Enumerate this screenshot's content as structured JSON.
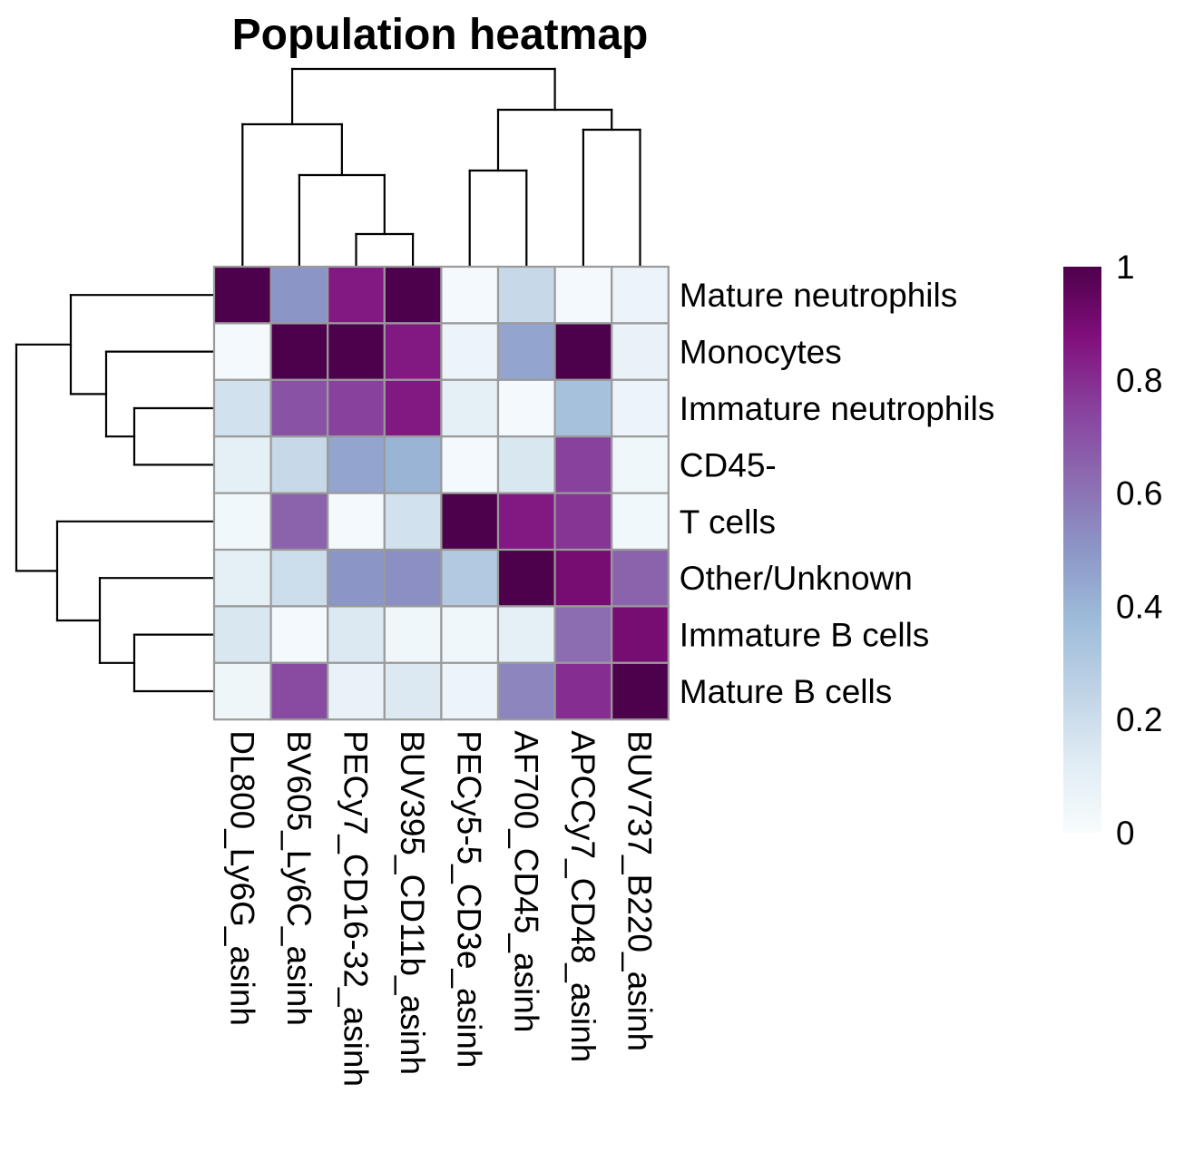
{
  "chart_data": {
    "type": "heatmap",
    "title": "Population heatmap",
    "columns": [
      "DL800_Ly6G_asinh",
      "BV605_Ly6C_asinh",
      "PECy7_CD16-32_asinh",
      "BUV395_CD11b_asinh",
      "PECy5-5_CD3e_asinh",
      "AF700_CD45_asinh",
      "APCCy7_CD48_asinh",
      "BUV737_B220_asinh"
    ],
    "rows": [
      "Mature neutrophils",
      "Monocytes",
      "Immature neutrophils",
      "CD45-",
      "T cells",
      "Other/Unknown",
      "Immature B cells",
      "Mature B cells"
    ],
    "values": [
      [
        1.0,
        0.5,
        0.85,
        1.0,
        0.02,
        0.22,
        0.02,
        0.06
      ],
      [
        0.02,
        1.0,
        1.0,
        0.85,
        0.06,
        0.45,
        1.0,
        0.08
      ],
      [
        0.18,
        0.7,
        0.75,
        0.85,
        0.1,
        0.02,
        0.35,
        0.06
      ],
      [
        0.1,
        0.22,
        0.45,
        0.4,
        0.02,
        0.15,
        0.75,
        0.04
      ],
      [
        0.03,
        0.65,
        0.02,
        0.18,
        1.0,
        0.85,
        0.78,
        0.03
      ],
      [
        0.1,
        0.2,
        0.5,
        0.52,
        0.3,
        1.0,
        0.9,
        0.65
      ],
      [
        0.15,
        0.02,
        0.14,
        0.04,
        0.04,
        0.1,
        0.62,
        0.9
      ],
      [
        0.05,
        0.72,
        0.08,
        0.14,
        0.06,
        0.55,
        0.8,
        1.0
      ]
    ],
    "legend": {
      "ticks": [
        "1",
        "0.8",
        "0.6",
        "0.4",
        "0.2",
        "0"
      ],
      "range": [
        0,
        1
      ]
    },
    "colorscale": [
      "#f7fcfd",
      "#e0ecf4",
      "#bfd3e6",
      "#9ebcda",
      "#8c96c6",
      "#8c6bb1",
      "#88419d",
      "#810f7c",
      "#4d004b"
    ],
    "grid_color": "#9a9a9a"
  }
}
